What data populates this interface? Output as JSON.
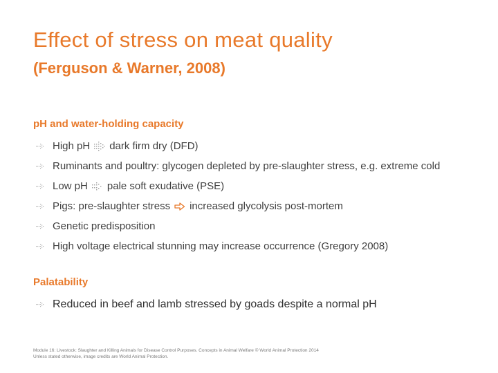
{
  "slide": {
    "title": "Effect of stress on meat quality",
    "subtitle": "(Ferguson & Warner, 2008)"
  },
  "section1": {
    "heading": "pH and water-holding capacity",
    "items": [
      {
        "a": "High pH",
        "b": "dark firm dry (DFD)"
      },
      {
        "text": "Ruminants and poultry: glycogen depleted by pre-slaughter stress, e.g. extreme cold"
      },
      {
        "a": "Low pH",
        "b": "pale soft exudative (PSE)"
      },
      {
        "a": "Pigs: pre-slaughter stress",
        "b": "increased glycolysis post-mortem"
      },
      {
        "text": "Genetic predisposition"
      },
      {
        "text": "High voltage electrical stunning may increase occurrence (Gregory 2008)"
      }
    ]
  },
  "section2": {
    "heading": "Palatability",
    "items": [
      {
        "text": "Reduced in beef and lamb stressed by goads despite a normal pH"
      }
    ]
  },
  "footer": {
    "line1": "Module 16: Livestock: Slaughter and Killing Animals for Disease Control Purposes. Concepts in Animal Welfare © World Animal Protection 2014",
    "line2": "Unless stated otherwise, image credits are World Animal Protection."
  },
  "colors": {
    "accent": "#e8792a",
    "text": "#404040",
    "bullet": "#b0b0b0"
  },
  "icons": {
    "bullet": "dotted-arrow-bullet-icon",
    "arrow": "dotted-arrow-icon",
    "outline_arrow": "outline-arrow-icon"
  }
}
